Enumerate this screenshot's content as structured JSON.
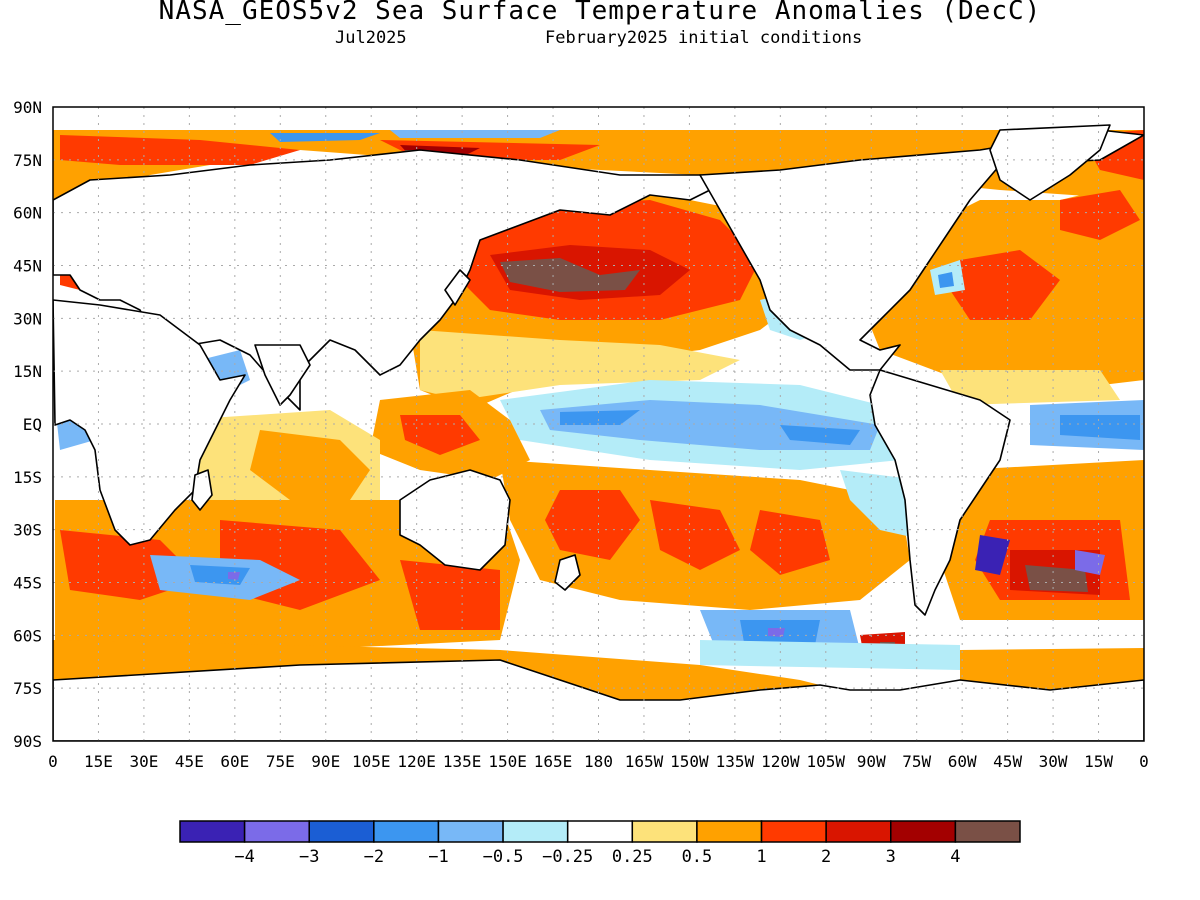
{
  "header": {
    "title": "NASA_GEOS5v2 Sea Surface Temperature Anomalies (DecC)",
    "valid_month": "Jul2025",
    "init_conditions": "February2025 initial conditions"
  },
  "map": {
    "lat_labels": [
      "90N",
      "75N",
      "60N",
      "45N",
      "30N",
      "15N",
      "EQ",
      "15S",
      "30S",
      "45S",
      "60S",
      "75S",
      "90S"
    ],
    "lon_labels": [
      "0",
      "15E",
      "30E",
      "45E",
      "60E",
      "75E",
      "90E",
      "105E",
      "120E",
      "135E",
      "150E",
      "165E",
      "180",
      "165W",
      "150W",
      "135W",
      "120W",
      "105W",
      "90W",
      "75W",
      "60W",
      "45W",
      "30W",
      "15W",
      "0"
    ]
  },
  "colorbar": {
    "colors": [
      "#3a22b4",
      "#7b6be8",
      "#1b5ed4",
      "#3c96f0",
      "#78b8f7",
      "#b4ecf8",
      "#ffffff",
      "#fde27a",
      "#ffa100",
      "#ff3a00",
      "#d91500",
      "#a30000",
      "#7a5046"
    ],
    "labels": [
      "−4",
      "−3",
      "−2",
      "−1",
      "−0.5",
      "−0.25",
      "0.25",
      "0.5",
      "1",
      "2",
      "3",
      "4"
    ]
  },
  "palette": {
    "land": "#ffffff",
    "grid": "#aaaaaa",
    "coast": "#000000"
  }
}
